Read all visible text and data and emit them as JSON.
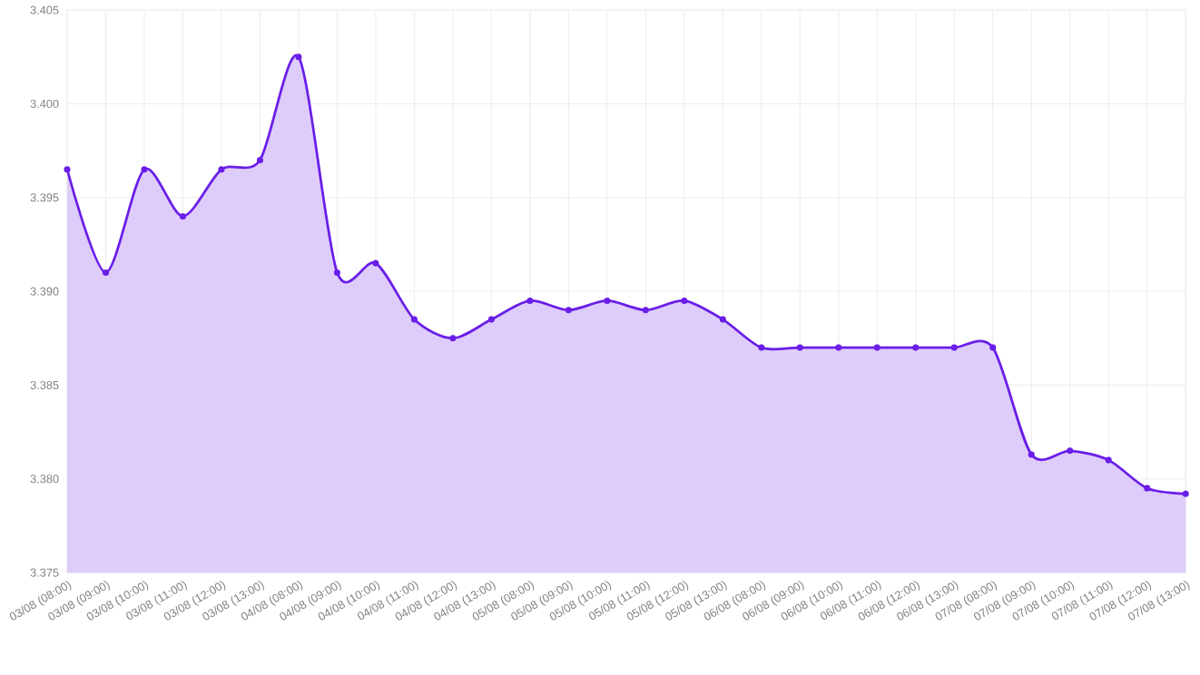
{
  "chart_data": {
    "type": "area",
    "categories": [
      "03/08 (08:00)",
      "03/08 (09:00)",
      "03/08 (10:00)",
      "03/08 (11:00)",
      "03/08 (12:00)",
      "03/08 (13:00)",
      "04/08 (08:00)",
      "04/08 (09:00)",
      "04/08 (10:00)",
      "04/08 (11:00)",
      "04/08 (12:00)",
      "04/08 (13:00)",
      "05/08 (08:00)",
      "05/08 (09:00)",
      "05/08 (10:00)",
      "05/08 (11:00)",
      "05/08 (12:00)",
      "05/08 (13:00)",
      "06/08 (08:00)",
      "06/08 (09:00)",
      "06/08 (10:00)",
      "06/08 (11:00)",
      "06/08 (12:00)",
      "06/08 (13:00)",
      "07/08 (08:00)",
      "07/08 (09:00)",
      "07/08 (10:00)",
      "07/08 (11:00)",
      "07/08 (12:00)",
      "07/08 (13:00)"
    ],
    "values": [
      3.3965,
      3.391,
      3.3965,
      3.394,
      3.3965,
      3.397,
      3.4025,
      3.391,
      3.3915,
      3.3885,
      3.3875,
      3.3885,
      3.3895,
      3.389,
      3.3895,
      3.389,
      3.3895,
      3.3885,
      3.387,
      3.387,
      3.387,
      3.387,
      3.387,
      3.387,
      3.387,
      3.3813,
      3.3815,
      3.381,
      3.3795,
      3.3792
    ],
    "color": "#6a1ee8",
    "ylim": [
      3.375,
      3.405
    ],
    "yticks": [
      3.375,
      {
        "value": 3.38,
        "label": "3.380"
      },
      3.385,
      {
        "value": 3.39,
        "label": "3.390"
      },
      3.395,
      {
        "value": 3.4,
        "label": "3.400"
      },
      3.405
    ],
    "grid": true,
    "marker": "circle"
  }
}
